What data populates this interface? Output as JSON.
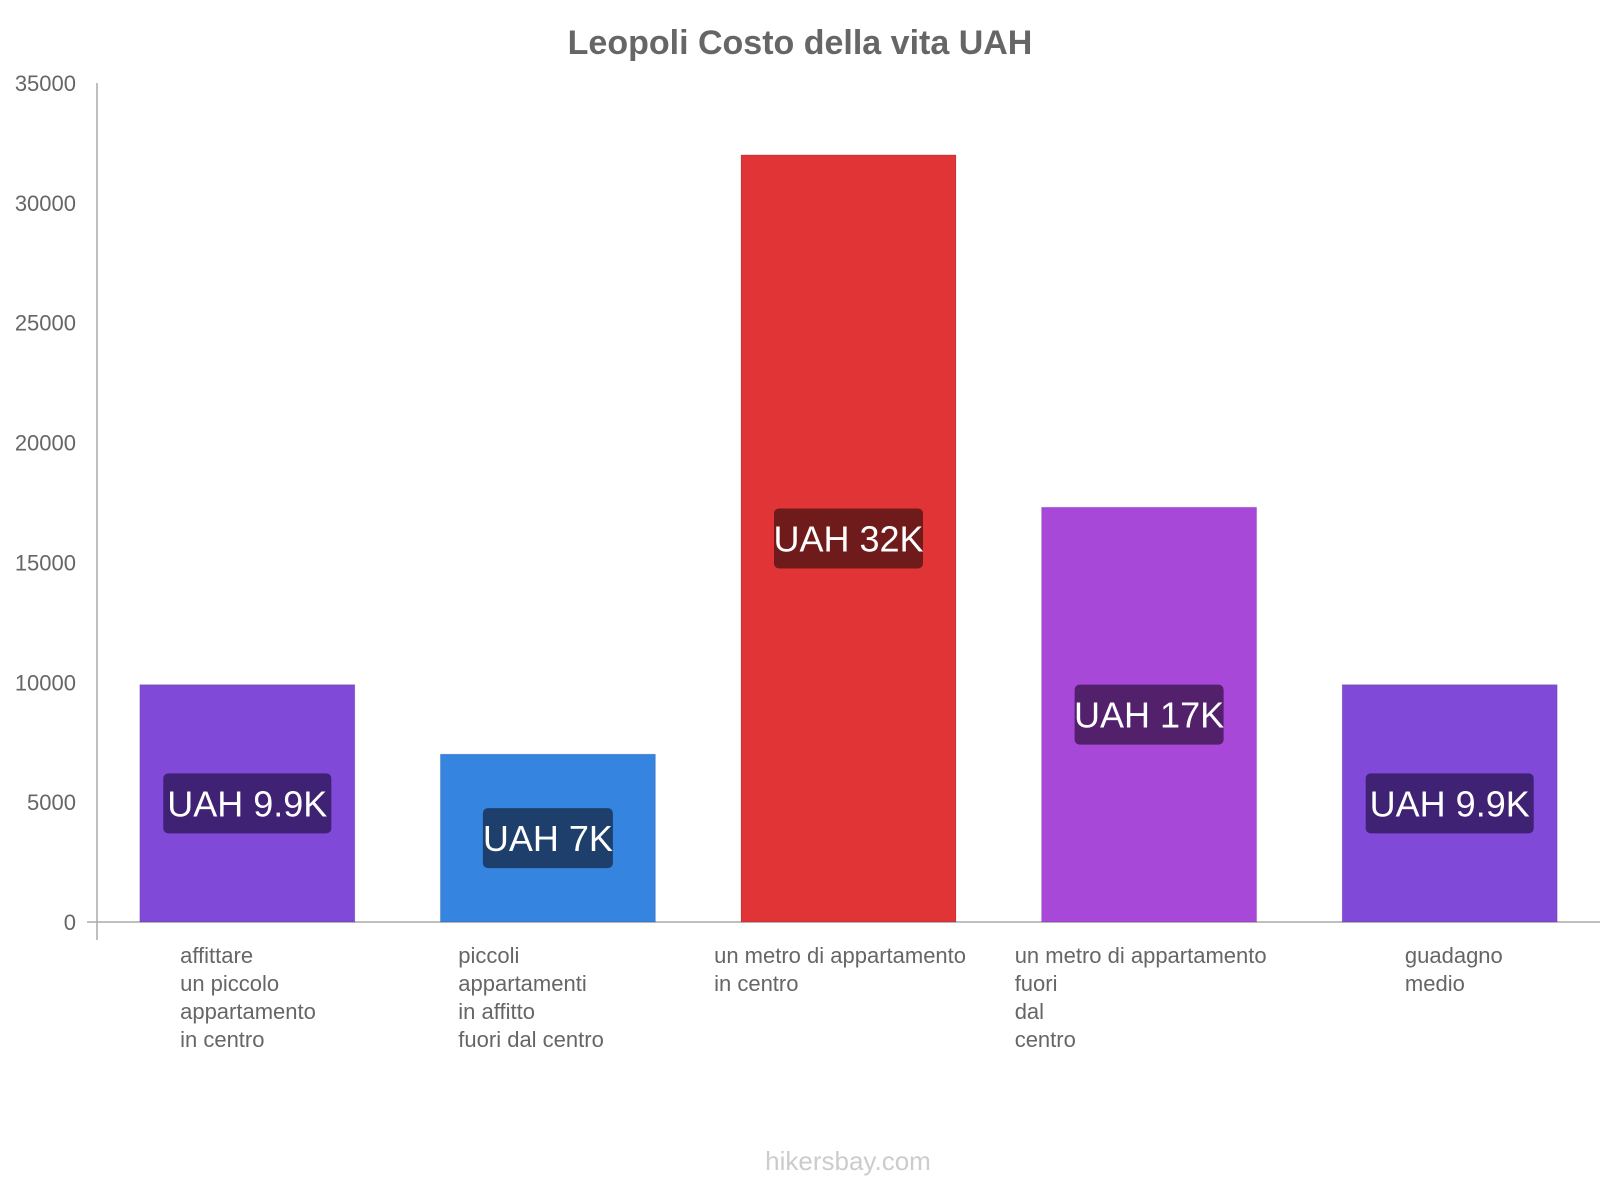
{
  "chart_data": {
    "type": "bar",
    "title": "Leopoli Costo della vita UAH",
    "xlabel": "",
    "ylabel": "",
    "ylim": [
      0,
      35000
    ],
    "yticks": [
      0,
      5000,
      10000,
      15000,
      20000,
      25000,
      30000,
      35000
    ],
    "grid": false,
    "categories": [
      [
        "affittare",
        "un piccolo",
        "appartamento",
        "in centro"
      ],
      [
        "piccoli",
        "appartamenti",
        "in affitto",
        "fuori dal centro"
      ],
      [
        "un metro di appartamento",
        "in centro"
      ],
      [
        "un metro di appartamento",
        "fuori",
        "dal",
        "centro"
      ],
      [
        "guadagno",
        "medio"
      ]
    ],
    "values": [
      9900,
      7000,
      32000,
      17300,
      9900
    ],
    "data_labels": [
      "UAH 9.9K",
      "UAH 7K",
      "UAH 32K",
      "UAH 17K",
      "UAH 9.9K"
    ],
    "bar_colors": [
      "#8049d7",
      "#3584e0",
      "#e03437",
      "#a848d9",
      "#8049d7"
    ],
    "label_colors": [
      "#3f2273",
      "#1e3f6b",
      "#701b1b",
      "#53206b",
      "#3f2273"
    ]
  },
  "watermark": "hikersbay.com"
}
